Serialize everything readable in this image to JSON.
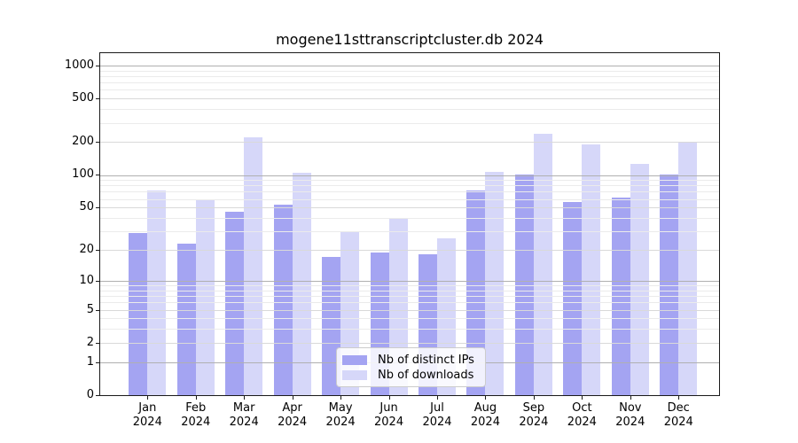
{
  "title": "mogene11sttranscriptcluster.db 2024",
  "chart_data": {
    "type": "bar",
    "title": "mogene11sttranscriptcluster.db 2024",
    "categories": [
      "Jan 2024",
      "Feb 2024",
      "Mar 2024",
      "Apr 2024",
      "May 2024",
      "Jun 2024",
      "Jul 2024",
      "Aug 2024",
      "Sep 2024",
      "Oct 2024",
      "Nov 2024",
      "Dec 2024"
    ],
    "series": [
      {
        "name": "Nb of distinct IPs",
        "color": "#a4a4f2",
        "values": [
          29,
          23,
          46,
          53,
          17,
          19,
          18,
          72,
          100,
          56,
          62,
          100
        ]
      },
      {
        "name": "Nb of downloads",
        "color": "#d6d7f9",
        "values": [
          72,
          60,
          220,
          105,
          30,
          40,
          26,
          107,
          240,
          190,
          126,
          200
        ]
      }
    ],
    "xlabel": "",
    "ylabel": "",
    "yscale": "log1p",
    "ylim": [
      0,
      1296
    ],
    "yticks": [
      0,
      1,
      2,
      5,
      10,
      20,
      50,
      100,
      200,
      500,
      1000
    ],
    "grid": true,
    "legend_position": "lower center"
  },
  "y_axis": {
    "tick_values": [
      0,
      1,
      2,
      5,
      10,
      20,
      50,
      100,
      200,
      500,
      1000
    ],
    "tick_labels": [
      "0",
      "1",
      "2",
      "5",
      "10",
      "20",
      "50",
      "100",
      "200",
      "500",
      "1000"
    ],
    "grid_major": [
      1,
      10,
      100,
      1000
    ],
    "grid_mid": [
      2,
      5,
      20,
      50,
      200,
      500
    ],
    "grid_minor": [
      3,
      4,
      6,
      7,
      8,
      9,
      30,
      40,
      60,
      70,
      80,
      90,
      300,
      400,
      600,
      700,
      800,
      900
    ]
  },
  "x_axis": {
    "months": [
      "Jan",
      "Feb",
      "Mar",
      "Apr",
      "May",
      "Jun",
      "Jul",
      "Aug",
      "Sep",
      "Oct",
      "Nov",
      "Dec"
    ],
    "year": "2024"
  },
  "legend": {
    "items": [
      {
        "label": "Nb of distinct IPs",
        "color_key": "bar_distinct_ips"
      },
      {
        "label": "Nb of downloads",
        "color_key": "bar_downloads"
      }
    ]
  },
  "colors": {
    "bar_distinct_ips": "#a4a4f2",
    "bar_downloads": "#d6d7f9",
    "grid_major": "#b0b0b0",
    "grid_mid": "#d9d9d9",
    "grid_minor": "#ebebeb",
    "spine": "#1a1a1a",
    "background": "#ffffff"
  }
}
